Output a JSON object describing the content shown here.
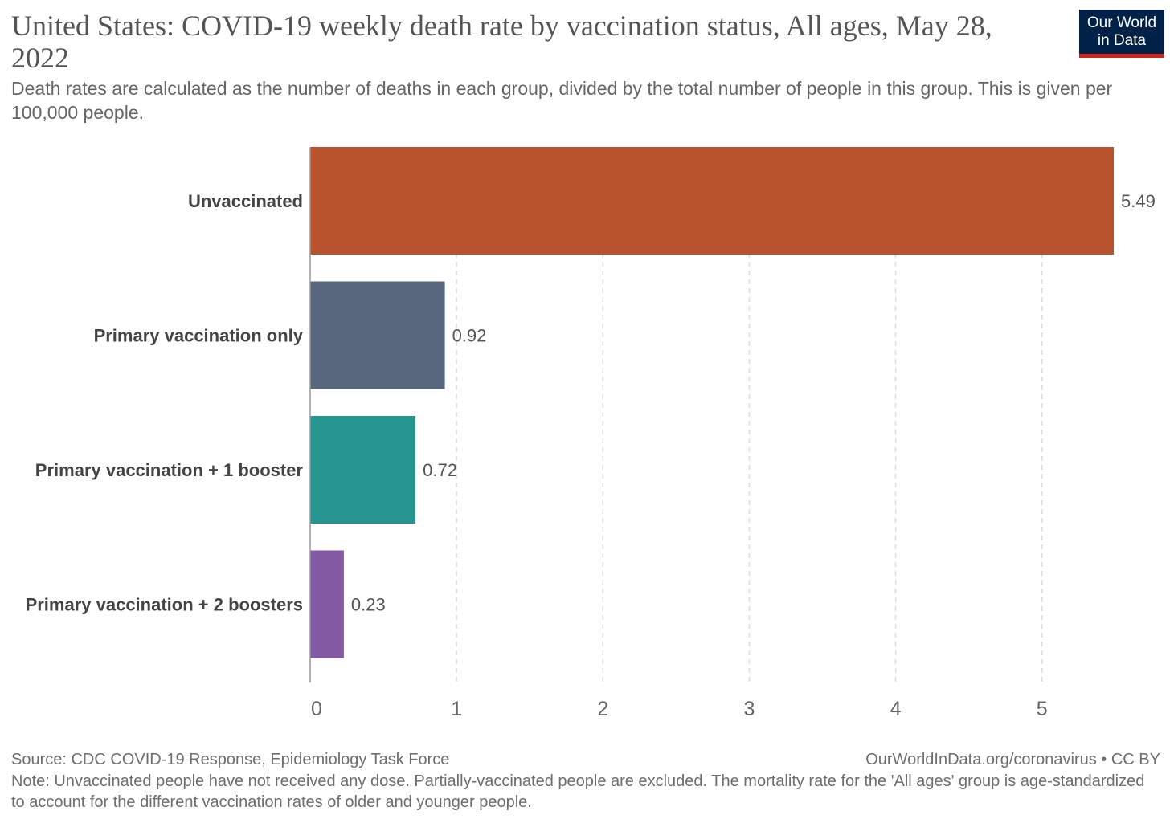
{
  "title": "United States: COVID-19 weekly death rate by vaccination status, All ages, May 28, 2022",
  "subtitle": "Death rates are calculated as the number of deaths in each group, divided by the total number of people in this group. This is given per 100,000 people.",
  "logo": {
    "line1": "Our World",
    "line2": "in Data"
  },
  "footer": {
    "source": "Source: CDC COVID-19 Response, Epidemiology Task Force",
    "credit": "OurWorldInData.org/coronavirus • CC BY",
    "note": "Note: Unvaccinated people have not received any dose. Partially-vaccinated people are excluded. The mortality rate for the 'All ages' group is age-standardized to account for the different vaccination rates of older and younger people."
  },
  "chart_data": {
    "type": "bar",
    "orientation": "horizontal",
    "categories": [
      "Unvaccinated",
      "Primary vaccination only",
      "Primary vaccination + 1 booster",
      "Primary vaccination + 2 boosters"
    ],
    "values": [
      5.49,
      0.92,
      0.72,
      0.23
    ],
    "value_labels": [
      "5.49",
      "0.92",
      "0.72",
      "0.23"
    ],
    "colors": [
      "#b9532d",
      "#58677d",
      "#27958f",
      "#8359a3"
    ],
    "xlim": [
      0,
      5.49
    ],
    "xticks": [
      0,
      1,
      2,
      3,
      4,
      5
    ],
    "xtick_labels": [
      "0",
      "1",
      "2",
      "3",
      "4",
      "5"
    ],
    "grid": true
  }
}
